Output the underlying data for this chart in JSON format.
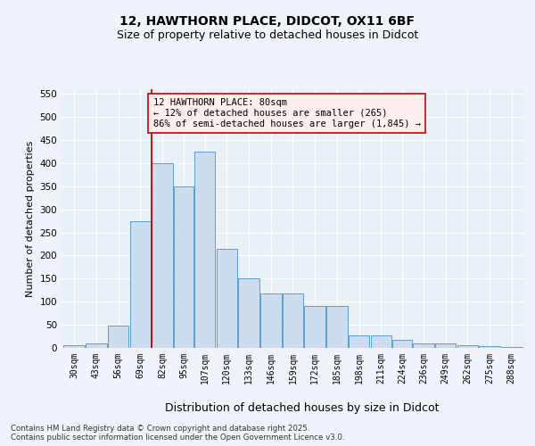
{
  "title_line1": "12, HAWTHORN PLACE, DIDCOT, OX11 6BF",
  "title_line2": "Size of property relative to detached houses in Didcot",
  "xlabel": "Distribution of detached houses by size in Didcot",
  "ylabel": "Number of detached properties",
  "bar_left_edges": [
    30,
    43,
    56,
    69,
    82,
    95,
    107,
    120,
    133,
    146,
    159,
    172,
    185,
    198,
    211,
    224,
    236,
    249,
    262,
    275,
    288
  ],
  "bar_widths": [
    13,
    13,
    13,
    13,
    13,
    12,
    13,
    13,
    13,
    13,
    13,
    13,
    13,
    13,
    13,
    12,
    13,
    13,
    13,
    13,
    13
  ],
  "bar_heights": [
    5,
    10,
    48,
    275,
    400,
    350,
    425,
    215,
    150,
    118,
    118,
    90,
    90,
    28,
    28,
    17,
    10,
    10,
    5,
    3,
    2
  ],
  "bar_color": "#ccddf0",
  "bar_edgecolor": "#5a9fd4",
  "x_tick_labels": [
    "30sqm",
    "43sqm",
    "56sqm",
    "69sqm",
    "82sqm",
    "95sqm",
    "107sqm",
    "120sqm",
    "133sqm",
    "146sqm",
    "159sqm",
    "172sqm",
    "185sqm",
    "198sqm",
    "211sqm",
    "224sqm",
    "236sqm",
    "249sqm",
    "262sqm",
    "275sqm",
    "288sqm"
  ],
  "ylim": [
    0,
    560
  ],
  "yticks": [
    0,
    50,
    100,
    150,
    200,
    250,
    300,
    350,
    400,
    450,
    500,
    550
  ],
  "vline_x": 82,
  "vline_color": "#cc0000",
  "annotation_text": "12 HAWTHORN PLACE: 80sqm\n← 12% of detached houses are smaller (265)\n86% of semi-detached houses are larger (1,845) →",
  "annotation_box_color": "#ffeeee",
  "annotation_box_edgecolor": "#cc0000",
  "bg_color": "#e8f0f8",
  "grid_color": "#ffffff",
  "footer_text": "Contains HM Land Registry data © Crown copyright and database right 2025.\nContains public sector information licensed under the Open Government Licence v3.0.",
  "title_fontsize": 10,
  "subtitle_fontsize": 9,
  "tick_fontsize": 7,
  "annotation_fontsize": 7.5,
  "ylabel_fontsize": 8,
  "xlabel_fontsize": 9
}
